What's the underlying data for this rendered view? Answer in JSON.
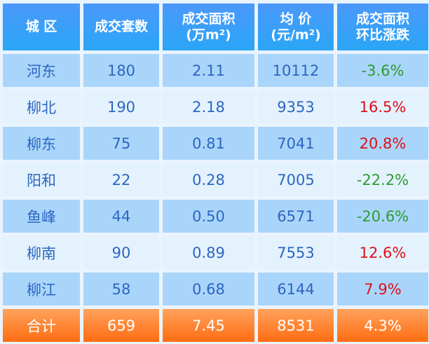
{
  "headers": [
    {
      "l1": "城 区",
      "l2": ""
    },
    {
      "l1": "成交套数",
      "l2": ""
    },
    {
      "l1": "成交面积",
      "l2": "(万m²)"
    },
    {
      "l1": "均 价",
      "l2": "(元/m²)"
    },
    {
      "l1": "成交面积",
      "l2": "环比涨跌"
    }
  ],
  "rows": [
    {
      "district": "河东",
      "units": "180",
      "area": "2.11",
      "price": "10112",
      "change": "-3.6%",
      "trend": "down"
    },
    {
      "district": "柳北",
      "units": "190",
      "area": "2.18",
      "price": "9353",
      "change": "16.5%",
      "trend": "up"
    },
    {
      "district": "柳东",
      "units": "75",
      "area": "0.81",
      "price": "7041",
      "change": "20.8%",
      "trend": "up"
    },
    {
      "district": "阳和",
      "units": "22",
      "area": "0.28",
      "price": "7005",
      "change": "-22.2%",
      "trend": "down"
    },
    {
      "district": "鱼峰",
      "units": "44",
      "area": "0.50",
      "price": "6571",
      "change": "-20.6%",
      "trend": "down"
    },
    {
      "district": "柳南",
      "units": "90",
      "area": "0.89",
      "price": "7553",
      "change": "12.6%",
      "trend": "up"
    },
    {
      "district": "柳江",
      "units": "58",
      "area": "0.68",
      "price": "6144",
      "change": "7.9%",
      "trend": "up"
    }
  ],
  "total": {
    "district": "合计",
    "units": "659",
    "area": "7.45",
    "price": "8531",
    "change": "4.3%"
  },
  "colors": {
    "header": "#3a9ff8",
    "row_dark": "#aad5fb",
    "row_light": "#e4f2fe",
    "total": "#ff7a22",
    "text": "#2c66c0",
    "up": "#de1019",
    "down": "#2e9c2e"
  }
}
